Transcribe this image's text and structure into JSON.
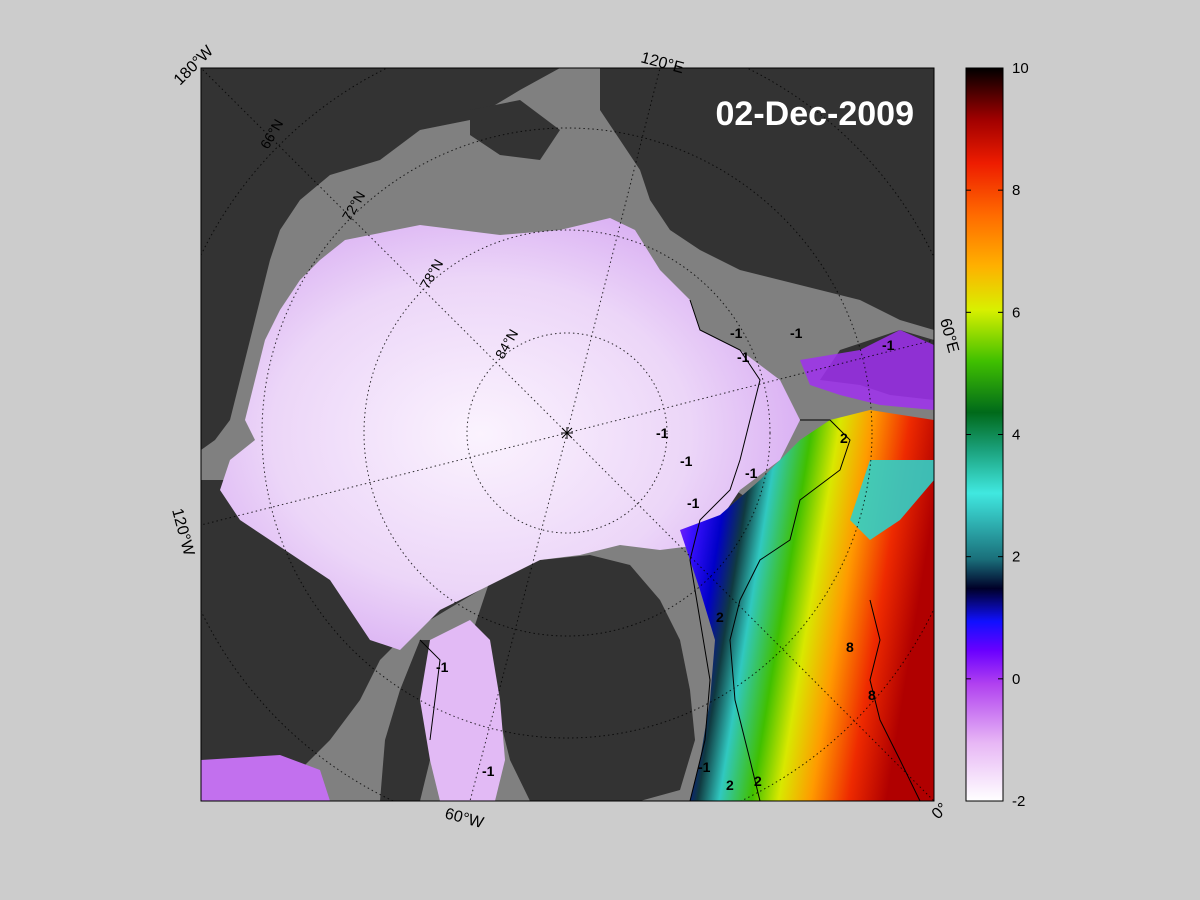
{
  "date_label": "02-Dec-2009",
  "longitude_labels": {
    "lon_180w": "180°W",
    "lon_120e": "120°E",
    "lon_60e": "60°E",
    "lon_0": "0°",
    "lon_60w": "60°W",
    "lon_120w": "120°W"
  },
  "latitude_labels": [
    "66°N",
    "72°N",
    "78°N",
    "84°N"
  ],
  "contour_labels": [
    "-1",
    "-1",
    "-1",
    "-1",
    "-1",
    "-1",
    "-1",
    "-1",
    "-1",
    "-1",
    "-1",
    "2",
    "2",
    "2",
    "2",
    "8",
    "8"
  ],
  "colorbar": {
    "min": -2,
    "max": 10,
    "ticks": [
      "10",
      "8",
      "6",
      "4",
      "2",
      "0",
      "-2"
    ]
  },
  "colors": {
    "background": "#cccccc",
    "land": "#333333",
    "ocean_no_data": "#808080",
    "cold_ice": "#f4e6fb"
  }
}
